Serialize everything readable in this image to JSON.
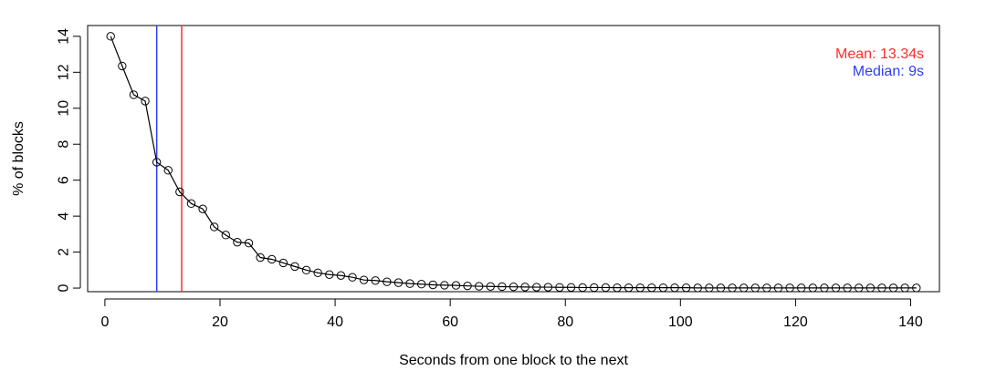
{
  "chart_data": {
    "type": "line",
    "title": "",
    "xlabel": "Seconds from one block to the next",
    "ylabel": "% of blocks",
    "xlim": [
      -3,
      145
    ],
    "ylim": [
      -0.2,
      14.6
    ],
    "xticks": [
      0,
      20,
      40,
      60,
      80,
      100,
      120,
      140
    ],
    "yticks": [
      0,
      2,
      4,
      6,
      8,
      10,
      12,
      14
    ],
    "series": [
      {
        "marker": "open-circle",
        "color": "#000000",
        "x": [
          1,
          3,
          5,
          7,
          9,
          11,
          13,
          15,
          17,
          19,
          21,
          23,
          25,
          27,
          29,
          31,
          33,
          35,
          37,
          39,
          41,
          43,
          45,
          47,
          49,
          51,
          53,
          55,
          57,
          59,
          61,
          63,
          65,
          67,
          69,
          71,
          73,
          75,
          77,
          79,
          81,
          83,
          85,
          87,
          89,
          91,
          93,
          95,
          97,
          99,
          101,
          103,
          105,
          107,
          109,
          111,
          113,
          115,
          117,
          119,
          121,
          123,
          125,
          127,
          129,
          131,
          133,
          135,
          137,
          139,
          141
        ],
        "y": [
          14.0,
          12.35,
          10.75,
          10.4,
          7.0,
          6.55,
          5.35,
          4.7,
          4.4,
          3.4,
          2.95,
          2.55,
          2.5,
          1.7,
          1.6,
          1.4,
          1.2,
          1.0,
          0.85,
          0.75,
          0.7,
          0.6,
          0.45,
          0.42,
          0.35,
          0.3,
          0.25,
          0.22,
          0.18,
          0.16,
          0.15,
          0.12,
          0.1,
          0.09,
          0.08,
          0.07,
          0.06,
          0.05,
          0.05,
          0.04,
          0.04,
          0.03,
          0.03,
          0.03,
          0.02,
          0.02,
          0.02,
          0.02,
          0.02,
          0.02,
          0.02,
          0.01,
          0.01,
          0.01,
          0.01,
          0.01,
          0.01,
          0.01,
          0.01,
          0.01,
          0.01,
          0.01,
          0.01,
          0.01,
          0.01,
          0.01,
          0.01,
          0.01,
          0.01,
          0.01,
          0.01
        ]
      }
    ],
    "vlines": [
      {
        "name": "Mean",
        "x": 13.34,
        "color": "#ff2d2d"
      },
      {
        "name": "Median",
        "x": 9,
        "color": "#2d3df5"
      }
    ],
    "legend": {
      "placement": "top-right",
      "entries": [
        {
          "text": "Mean: 13.34s",
          "color": "#ff2d2d"
        },
        {
          "text": "Median: 9s",
          "color": "#2d3df5"
        }
      ]
    },
    "grid": false
  }
}
